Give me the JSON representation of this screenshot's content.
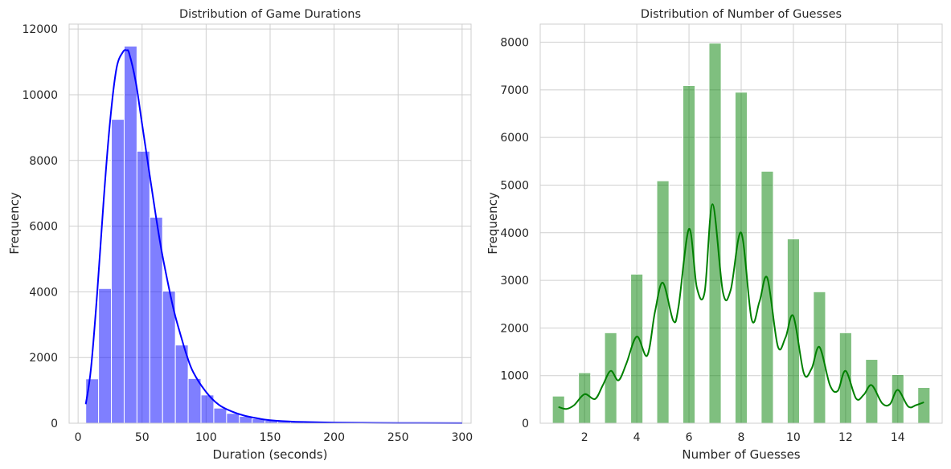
{
  "chart_data": [
    {
      "type": "bar",
      "title": "Distribution of Game Durations",
      "xlabel": "Duration (seconds)",
      "ylabel": "Frequency",
      "xlim": [
        -7,
        307
      ],
      "ylim": [
        0,
        12150
      ],
      "xticks": [
        0,
        50,
        100,
        150,
        200,
        250,
        300
      ],
      "yticks": [
        0,
        2000,
        4000,
        6000,
        8000,
        10000,
        12000
      ],
      "grid": true,
      "bar_color": "#0000ff",
      "bar_alpha": 0.5,
      "kde_color": "#0000ff",
      "bin_edges": [
        6,
        16,
        26,
        36,
        46,
        56,
        66,
        76,
        86,
        96,
        106,
        116,
        126,
        136,
        146,
        156,
        166,
        176,
        186,
        196,
        206,
        216,
        226,
        236,
        246,
        256,
        266,
        276,
        286,
        296,
        306
      ],
      "values": [
        1350,
        4100,
        9250,
        11480,
        8280,
        6270,
        4020,
        2380,
        1360,
        860,
        460,
        300,
        210,
        140,
        90,
        55,
        40,
        30,
        20,
        15,
        12,
        10,
        8,
        6,
        5,
        4,
        3,
        3,
        2,
        2
      ],
      "kde": {
        "x": [
          6,
          10,
          15,
          20,
          25,
          30,
          35,
          38,
          40,
          45,
          50,
          55,
          60,
          65,
          70,
          75,
          80,
          85,
          90,
          100,
          110,
          120,
          130,
          140,
          150,
          170,
          200,
          250,
          300
        ],
        "y": [
          580,
          1650,
          4000,
          6800,
          9200,
          10800,
          11300,
          11350,
          11250,
          10400,
          9100,
          7800,
          6500,
          5300,
          4300,
          3400,
          2700,
          2050,
          1550,
          950,
          560,
          360,
          230,
          150,
          90,
          45,
          20,
          8,
          3
        ]
      }
    },
    {
      "type": "bar",
      "title": "Distribution of Number of Guesses",
      "xlabel": "Number of Guesses",
      "ylabel": "Frequency",
      "xlim": [
        0.3,
        15.7
      ],
      "ylim": [
        0,
        8380
      ],
      "xticks": [
        2,
        4,
        6,
        8,
        10,
        12,
        14
      ],
      "yticks": [
        0,
        1000,
        2000,
        3000,
        4000,
        5000,
        6000,
        7000,
        8000
      ],
      "grid": true,
      "bar_color": "#008000",
      "bar_alpha": 0.5,
      "kde_color": "#008000",
      "categories": [
        1,
        2,
        3,
        4,
        5,
        6,
        7,
        8,
        9,
        10,
        11,
        12,
        13,
        14,
        15
      ],
      "values": [
        570,
        1060,
        1900,
        3130,
        5090,
        7090,
        7980,
        6950,
        5290,
        3870,
        2760,
        1900,
        1340,
        1020,
        750
      ],
      "kde": {
        "x": [
          1,
          1.3,
          1.6,
          2,
          2.4,
          2.7,
          3,
          3.3,
          3.6,
          4,
          4.4,
          4.7,
          5,
          5.4,
          5.6,
          6,
          6.3,
          6.6,
          6.9,
          7.3,
          7.6,
          8,
          8.4,
          8.7,
          9,
          9.4,
          9.7,
          10,
          10.4,
          10.7,
          11,
          11.4,
          11.7,
          12,
          12.4,
          12.7,
          13,
          13.4,
          13.7,
          14,
          14.4,
          14.7,
          15
        ],
        "y": [
          340,
          300,
          380,
          610,
          510,
          800,
          1100,
          900,
          1250,
          1820,
          1420,
          2350,
          2950,
          2150,
          2450,
          4080,
          2850,
          2750,
          4600,
          2750,
          2800,
          4000,
          2180,
          2550,
          3050,
          1620,
          1800,
          2250,
          1050,
          1150,
          1600,
          800,
          680,
          1100,
          520,
          600,
          800,
          420,
          400,
          700,
          350,
          380,
          440
        ]
      }
    }
  ]
}
